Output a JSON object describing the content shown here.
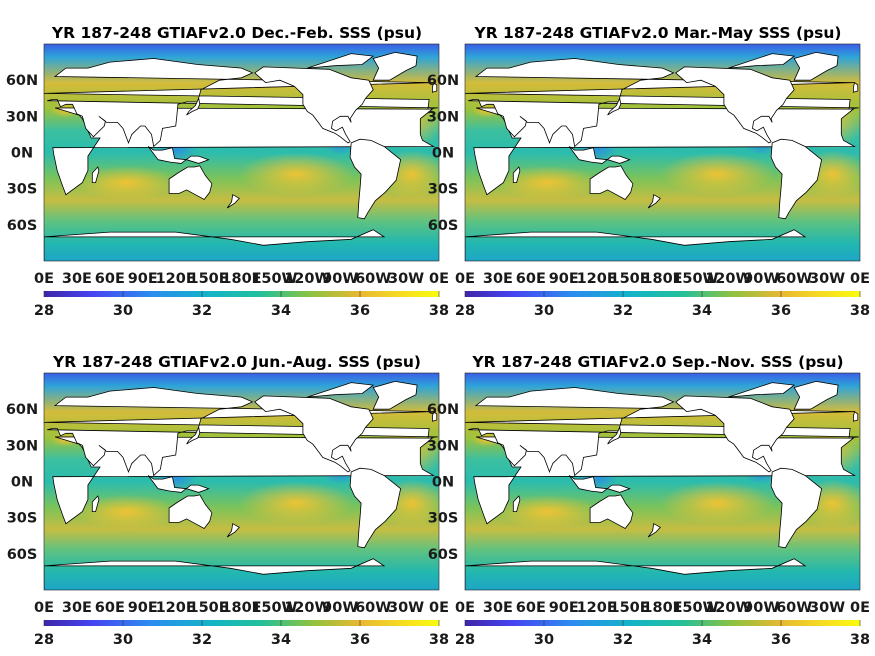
{
  "chart_data": [
    {
      "type": "heatmap",
      "title": "YR 187-248 GTIAFv2.0 Dec.-Feb. SSS (psu)",
      "season": "DJF",
      "x_ticks": [
        "0E",
        "30E",
        "60E",
        "90E",
        "120E",
        "150E",
        "180E",
        "150W",
        "120W",
        "90W",
        "60W",
        "30W",
        "0E"
      ],
      "y_ticks": [
        "60N",
        "30N",
        "0N",
        "30S",
        "60S"
      ],
      "colorbar": {
        "min": 28,
        "max": 38,
        "ticks": [
          "28",
          "30",
          "32",
          "34",
          "36",
          "38"
        ]
      }
    },
    {
      "type": "heatmap",
      "title": "YR 187-248 GTIAFv2.0 Mar.-May SSS (psu)",
      "season": "MAM",
      "x_ticks": [
        "0E",
        "30E",
        "60E",
        "90E",
        "120E",
        "150E",
        "180E",
        "150W",
        "120W",
        "90W",
        "60W",
        "30W",
        "0E"
      ],
      "y_ticks": [
        "60N",
        "30N",
        "0N",
        "30S",
        "60S"
      ],
      "colorbar": {
        "min": 28,
        "max": 38,
        "ticks": [
          "28",
          "30",
          "32",
          "34",
          "36",
          "38"
        ]
      }
    },
    {
      "type": "heatmap",
      "title": "YR 187-248 GTIAFv2.0 Jun.-Aug. SSS (psu)",
      "season": "JJA",
      "x_ticks": [
        "0E",
        "30E",
        "60E",
        "90E",
        "120E",
        "150E",
        "180E",
        "150W",
        "120W",
        "90W",
        "60W",
        "30W",
        "0E"
      ],
      "y_ticks": [
        "60N",
        "30N",
        "0N",
        "30S",
        "60S"
      ],
      "colorbar": {
        "min": 28,
        "max": 38,
        "ticks": [
          "28",
          "30",
          "32",
          "34",
          "36",
          "38"
        ]
      }
    },
    {
      "type": "heatmap",
      "title": "YR 187-248 GTIAFv2.0 Sep.-Nov. SSS (psu)",
      "season": "SON",
      "x_ticks": [
        "0E",
        "30E",
        "60E",
        "90E",
        "120E",
        "150E",
        "180E",
        "150W",
        "120W",
        "90W",
        "60W",
        "30W",
        "0E"
      ],
      "y_ticks": [
        "60N",
        "30N",
        "0N",
        "30S",
        "60S"
      ],
      "colorbar": {
        "min": 28,
        "max": 38,
        "ticks": [
          "28",
          "30",
          "32",
          "34",
          "36",
          "38"
        ]
      }
    }
  ],
  "colors": {
    "colormap": [
      "#3e26a8",
      "#4743f0",
      "#2c8cf0",
      "#13b4c8",
      "#24c09a",
      "#8fc23e",
      "#e8b832",
      "#f7e11f",
      "#f9fb0e"
    ],
    "land": "#ffffff",
    "coast": "#000000"
  }
}
